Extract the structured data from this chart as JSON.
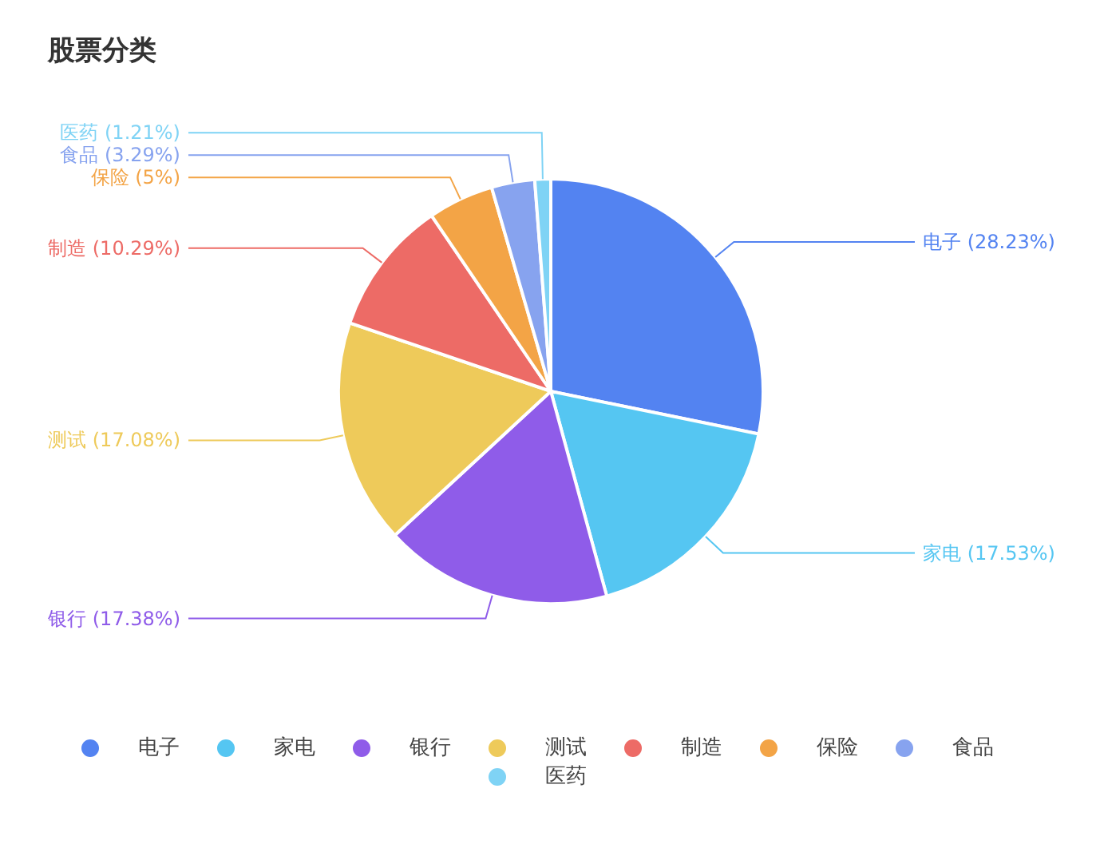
{
  "chart_data": {
    "type": "pie",
    "title": "股票分类",
    "categories": [
      "电子",
      "家电",
      "银行",
      "测试",
      "制造",
      "保险",
      "食品",
      "医药"
    ],
    "values": [
      28.23,
      17.53,
      17.38,
      17.08,
      10.29,
      5,
      3.29,
      1.21
    ],
    "value_labels": [
      "(28.23%)",
      "(17.53%)",
      "(17.38%)",
      "(17.08%)",
      "(10.29%)",
      "(5%)",
      "(3.29%)",
      "(1.21%)"
    ],
    "colors": [
      "#5383f1",
      "#55c6f2",
      "#8f5ce9",
      "#eeca5a",
      "#ed6b66",
      "#f3a446",
      "#87a3ef",
      "#7fd3f5"
    ],
    "legend": "bottom"
  }
}
